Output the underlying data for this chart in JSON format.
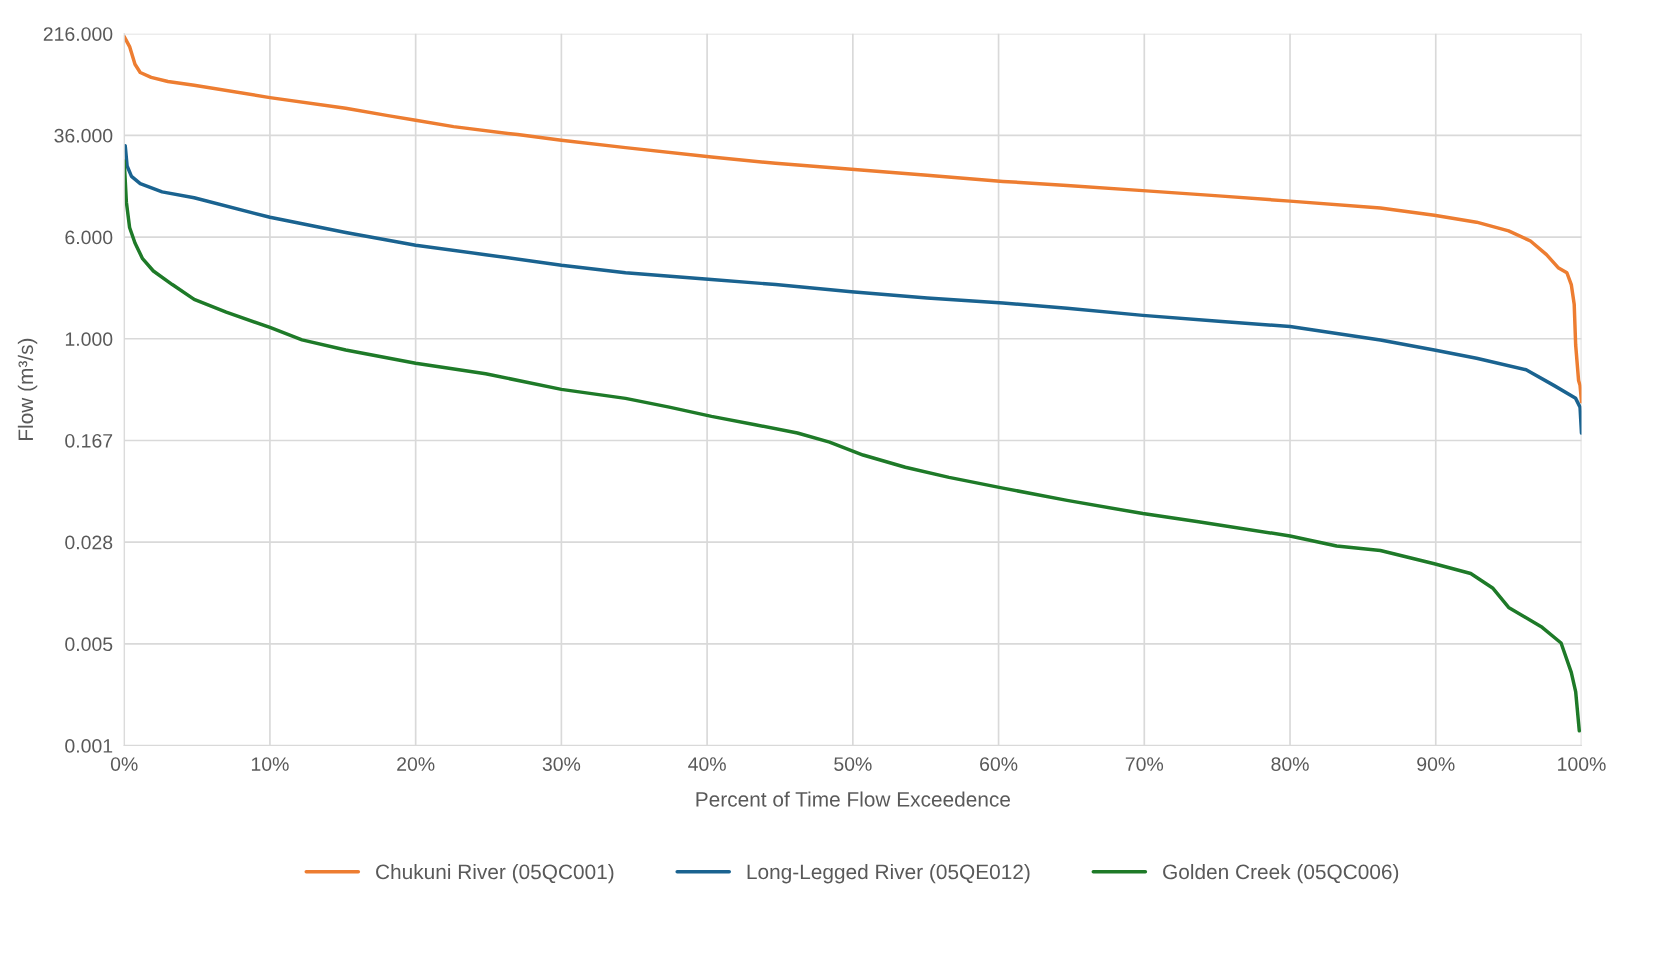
{
  "chart_data": {
    "type": "line",
    "xlabel": "Percent of Time Flow Exceedence",
    "ylabel": "Flow (m³/s)",
    "log": "y",
    "grid": true,
    "legend": "bottom",
    "marker": "none",
    "line_style": "solid",
    "xlim": [
      0,
      100
    ],
    "xticks": [
      {
        "value": 0,
        "label": "0%"
      },
      {
        "value": 10,
        "label": "10%"
      },
      {
        "value": 20,
        "label": "20%"
      },
      {
        "value": 30,
        "label": "30%"
      },
      {
        "value": 40,
        "label": "40%"
      },
      {
        "value": 50,
        "label": "50%"
      },
      {
        "value": 60,
        "label": "60%"
      },
      {
        "value": 70,
        "label": "70%"
      },
      {
        "value": 80,
        "label": "80%"
      },
      {
        "value": 90,
        "label": "90%"
      },
      {
        "value": 100,
        "label": "100%"
      }
    ],
    "ylim": [
      0.000772,
      216
    ],
    "yticks": [
      {
        "value": 0.000772,
        "label": "0.001"
      },
      {
        "value": 0.00463,
        "label": "0.005"
      },
      {
        "value": 0.0278,
        "label": "0.028"
      },
      {
        "value": 0.1667,
        "label": "0.167"
      },
      {
        "value": 1,
        "label": "1.000"
      },
      {
        "value": 6,
        "label": "6.000"
      },
      {
        "value": 36,
        "label": "36.000"
      },
      {
        "value": 216,
        "label": "216.000"
      }
    ],
    "series": [
      {
        "name": "Chukuni River (05QC001)",
        "color": "#ed7d31",
        "x": [
          0,
          0.37,
          0.74,
          1.1,
          1.85,
          3,
          4.8,
          10,
          15.2,
          18.1,
          20,
          22.6,
          27,
          30,
          34.4,
          40.3,
          44.7,
          49.9,
          55.1,
          60.3,
          64.7,
          69.9,
          75.1,
          80,
          86.2,
          89.9,
          92.8,
          95,
          96.5,
          97.6,
          98.4,
          99,
          99.3,
          99.5,
          99.6,
          99.8,
          99.9,
          100
        ],
        "values": [
          205,
          172,
          126,
          109,
          100,
          93,
          87,
          70,
          58,
          51,
          47,
          42,
          36.5,
          33,
          29,
          24.6,
          22,
          19.8,
          17.8,
          16,
          14.9,
          13.6,
          12.4,
          11.3,
          10,
          8.8,
          7.8,
          6.7,
          5.6,
          4.4,
          3.5,
          3.2,
          2.6,
          1.84,
          0.9,
          0.48,
          0.44,
          0.33
        ]
      },
      {
        "name": "Long-Legged River (05QE012)",
        "color": "#1a6390",
        "x": [
          0.07,
          0.2,
          0.5,
          1.1,
          2.6,
          4.8,
          10,
          15.2,
          20,
          24.8,
          30,
          34.4,
          40.3,
          44.7,
          49.9,
          55.1,
          60.3,
          64.7,
          69.9,
          75.1,
          80,
          86.2,
          89.9,
          92.8,
          96.2,
          98.1,
          99.6,
          99.9,
          100
        ],
        "values": [
          30,
          21,
          17.5,
          15.4,
          13.3,
          12,
          8.5,
          6.5,
          5.2,
          4.4,
          3.65,
          3.2,
          2.84,
          2.6,
          2.29,
          2.05,
          1.88,
          1.71,
          1.51,
          1.36,
          1.24,
          0.98,
          0.82,
          0.71,
          0.58,
          0.44,
          0.35,
          0.3,
          0.19
        ]
      },
      {
        "name": "Golden Creek (05QC006)",
        "color": "#1e7a28",
        "x": [
          0,
          0.15,
          0.37,
          0.74,
          1.26,
          2,
          3.3,
          4.8,
          7,
          10,
          12.2,
          15.2,
          20,
          24.8,
          30,
          34.4,
          37.4,
          40.3,
          43.3,
          46.2,
          48.4,
          50.7,
          53.6,
          56.6,
          60.3,
          64.7,
          69.9,
          73.6,
          80,
          83.2,
          86.2,
          89.9,
          92.4,
          93.9,
          95,
          97.3,
          98.6,
          99.3,
          99.6,
          99.85
        ],
        "values": [
          22.9,
          11.1,
          7.1,
          5.4,
          4.1,
          3.3,
          2.6,
          2.0,
          1.6,
          1.22,
          0.98,
          0.82,
          0.65,
          0.54,
          0.41,
          0.35,
          0.3,
          0.255,
          0.22,
          0.19,
          0.162,
          0.129,
          0.104,
          0.087,
          0.072,
          0.058,
          0.046,
          0.04,
          0.031,
          0.026,
          0.024,
          0.019,
          0.016,
          0.0124,
          0.0088,
          0.0062,
          0.0047,
          0.0028,
          0.002,
          0.001
        ]
      }
    ]
  }
}
